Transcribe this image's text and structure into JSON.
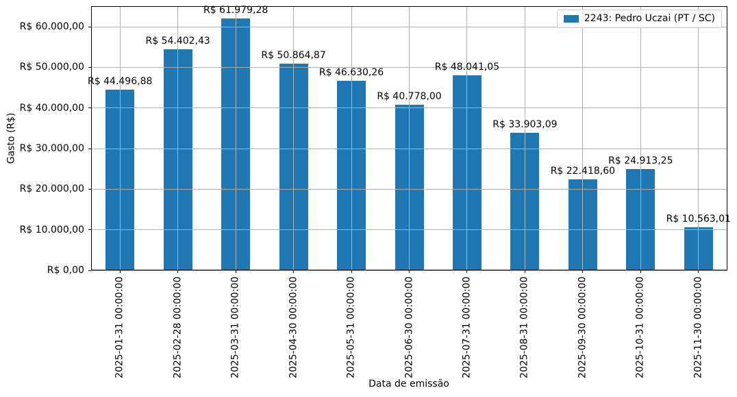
{
  "chart_data": {
    "type": "bar",
    "xlabel": "Data de emissão",
    "ylabel": "Gasto (R$)",
    "categories": [
      "2025-01-31 00:00:00",
      "2025-02-28 00:00:00",
      "2025-03-31 00:00:00",
      "2025-04-30 00:00:00",
      "2025-05-31 00:00:00",
      "2025-06-30 00:00:00",
      "2025-07-31 00:00:00",
      "2025-08-31 00:00:00",
      "2025-09-30 00:00:00",
      "2025-10-31 00:00:00",
      "2025-11-30 00:00:00"
    ],
    "series": [
      {
        "name": "2243: Pedro Uczai (PT / SC)",
        "color": "#1f77b4",
        "values": [
          44496.88,
          54402.43,
          61979.28,
          50864.87,
          46630.26,
          40778.0,
          48041.05,
          33903.09,
          22418.6,
          24913.25,
          10563.01
        ],
        "bar_labels": [
          "R$ 44.496,88",
          "R$ 54.402,43",
          "R$ 61.979,28",
          "R$ 50.864,87",
          "R$ 46.630,26",
          "R$ 40.778,00",
          "R$ 48.041,05",
          "R$ 33.903,09",
          "R$ 22.418,60",
          "R$ 24.913,25",
          "R$ 10.563,01"
        ]
      }
    ],
    "yticks": [
      {
        "value": 0,
        "label": "R$ 0,00"
      },
      {
        "value": 10000,
        "label": "R$ 10.000,00"
      },
      {
        "value": 20000,
        "label": "R$ 20.000,00"
      },
      {
        "value": 30000,
        "label": "R$ 30.000,00"
      },
      {
        "value": 40000,
        "label": "R$ 40.000,00"
      },
      {
        "value": 50000,
        "label": "R$ 50.000,00"
      },
      {
        "value": 60000,
        "label": "R$ 60.000,00"
      }
    ],
    "ylim": [
      0,
      65078
    ],
    "grid": true,
    "grid_color": "#b0b0b0",
    "bar_width_fraction": 0.5,
    "legend_position": "upper right"
  }
}
